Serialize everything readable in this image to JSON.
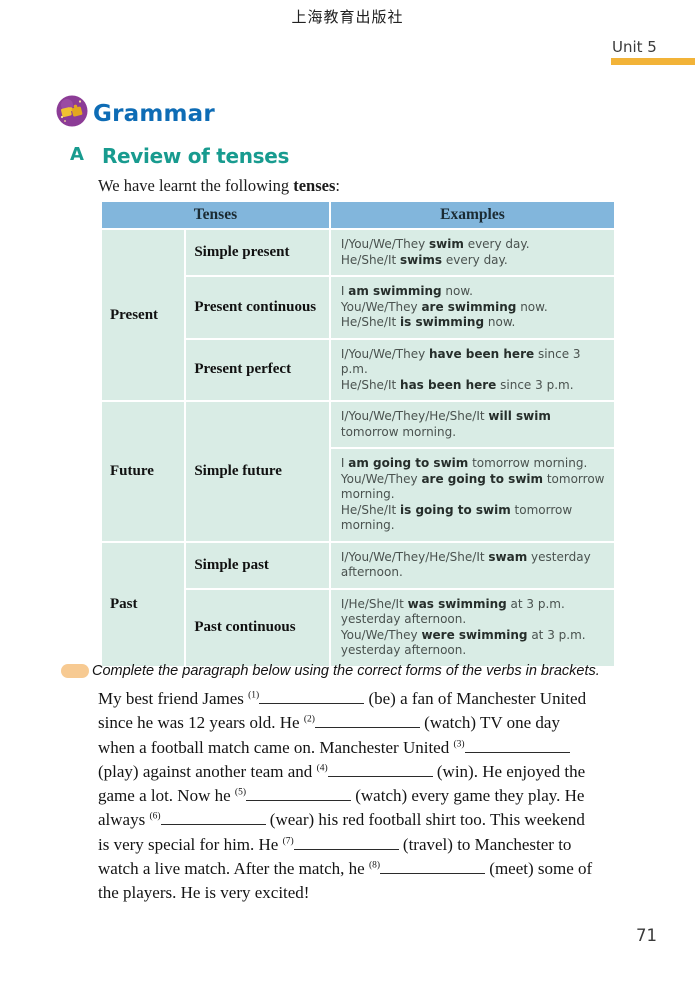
{
  "page": {
    "publisher": "上海教育出版社",
    "unit_label": "Unit 5",
    "page_number": "71"
  },
  "grammar": {
    "title": "Grammar",
    "icon": "puzzle-pieces-icon"
  },
  "section": {
    "letter": "A",
    "title": "Review of tenses"
  },
  "intro": {
    "before": "We have learnt the following ",
    "bold": "tenses",
    "after": ":"
  },
  "colors": {
    "table_header_blue": "#82B6DC",
    "table_body_mint": "#D9ECE5",
    "section_teal": "#189B8F",
    "grammar_blue": "#0E6CB5",
    "unit_bar_orange": "#F2B338",
    "instruction_tab_orange": "#F7CA92",
    "icon_purple": "#8C3C96",
    "icon_yellow": "#F0C232"
  },
  "tense_table": {
    "headers": {
      "tenses": "Tenses",
      "examples": "Examples"
    },
    "groups": [
      {
        "label": "Present",
        "rows": [
          {
            "tense": "Simple present",
            "cells": [
              [
                [
                  {
                    "t": "I/You/We/They "
                  },
                  {
                    "b": "swim"
                  },
                  {
                    "t": " every day."
                  }
                ],
                [
                  {
                    "t": "He/She/It "
                  },
                  {
                    "b": "swims"
                  },
                  {
                    "t": " every day."
                  }
                ]
              ]
            ]
          },
          {
            "tense": "Present continuous",
            "cells": [
              [
                [
                  {
                    "t": "I "
                  },
                  {
                    "b": "am swimming"
                  },
                  {
                    "t": " now."
                  }
                ],
                [
                  {
                    "t": "You/We/They "
                  },
                  {
                    "b": "are swimming"
                  },
                  {
                    "t": " now."
                  }
                ],
                [
                  {
                    "t": "He/She/It "
                  },
                  {
                    "b": "is swimming"
                  },
                  {
                    "t": " now."
                  }
                ]
              ]
            ]
          },
          {
            "tense": "Present perfect",
            "cells": [
              [
                [
                  {
                    "t": "I/You/We/They "
                  },
                  {
                    "b": "have been here"
                  },
                  {
                    "t": " since 3 p.m."
                  }
                ],
                [
                  {
                    "t": "He/She/It "
                  },
                  {
                    "b": "has been here"
                  },
                  {
                    "t": " since 3 p.m."
                  }
                ]
              ]
            ]
          }
        ]
      },
      {
        "label": "Future",
        "rows": [
          {
            "tense": "Simple future",
            "cells": [
              [
                [
                  {
                    "t": "I/You/We/They/He/She/It "
                  },
                  {
                    "b": "will swim"
                  },
                  {
                    "t": " tomorrow morning."
                  }
                ]
              ],
              [
                [
                  {
                    "t": "I "
                  },
                  {
                    "b": "am going to swim"
                  },
                  {
                    "t": " tomorrow morning."
                  }
                ],
                [
                  {
                    "t": "You/We/They "
                  },
                  {
                    "b": "are going to swim"
                  },
                  {
                    "t": " tomorrow morning."
                  }
                ],
                [
                  {
                    "t": "He/She/It "
                  },
                  {
                    "b": "is going to swim"
                  },
                  {
                    "t": " tomorrow morning."
                  }
                ]
              ]
            ]
          }
        ]
      },
      {
        "label": "Past",
        "rows": [
          {
            "tense": "Simple past",
            "cells": [
              [
                [
                  {
                    "t": "I/You/We/They/He/She/It "
                  },
                  {
                    "b": "swam"
                  },
                  {
                    "t": " yesterday afternoon."
                  }
                ]
              ]
            ]
          },
          {
            "tense": "Past continuous",
            "cells": [
              [
                [
                  {
                    "t": "I/He/She/It "
                  },
                  {
                    "b": "was swimming"
                  },
                  {
                    "t": " at 3 p.m. yesterday afternoon."
                  }
                ],
                [
                  {
                    "t": "You/We/They "
                  },
                  {
                    "b": "were swimming"
                  },
                  {
                    "t": " at 3 p.m. yesterday afternoon."
                  }
                ]
              ]
            ]
          }
        ]
      }
    ]
  },
  "exercise": {
    "instruction": "Complete the paragraph below using the correct forms of the verbs in brackets.",
    "lines": [
      [
        {
          "t": "My best friend James "
        },
        {
          "n": "(1)"
        },
        {
          "t": " (be) a fan of Manchester United"
        }
      ],
      [
        {
          "t": "since he was 12 years old. He "
        },
        {
          "n": "(2)"
        },
        {
          "t": " (watch) TV one day"
        }
      ],
      [
        {
          "t": "when a football match came on. Manchester United "
        },
        {
          "n": "(3)"
        }
      ],
      [
        {
          "t": "(play) against another team and "
        },
        {
          "n": "(4)"
        },
        {
          "t": " (win). He enjoyed the"
        }
      ],
      [
        {
          "t": "game a lot. Now he "
        },
        {
          "n": "(5)"
        },
        {
          "t": " (watch) every game they play. He"
        }
      ],
      [
        {
          "t": "always "
        },
        {
          "n": "(6)"
        },
        {
          "t": " (wear) his red football shirt too. This weekend"
        }
      ],
      [
        {
          "t": "is very special for him. He "
        },
        {
          "n": "(7)"
        },
        {
          "t": " (travel) to Manchester to"
        }
      ],
      [
        {
          "t": "watch a live match. After the match, he "
        },
        {
          "n": "(8)"
        },
        {
          "t": " (meet) some of"
        }
      ],
      [
        {
          "t": "the players. He is very excited!"
        }
      ]
    ]
  }
}
